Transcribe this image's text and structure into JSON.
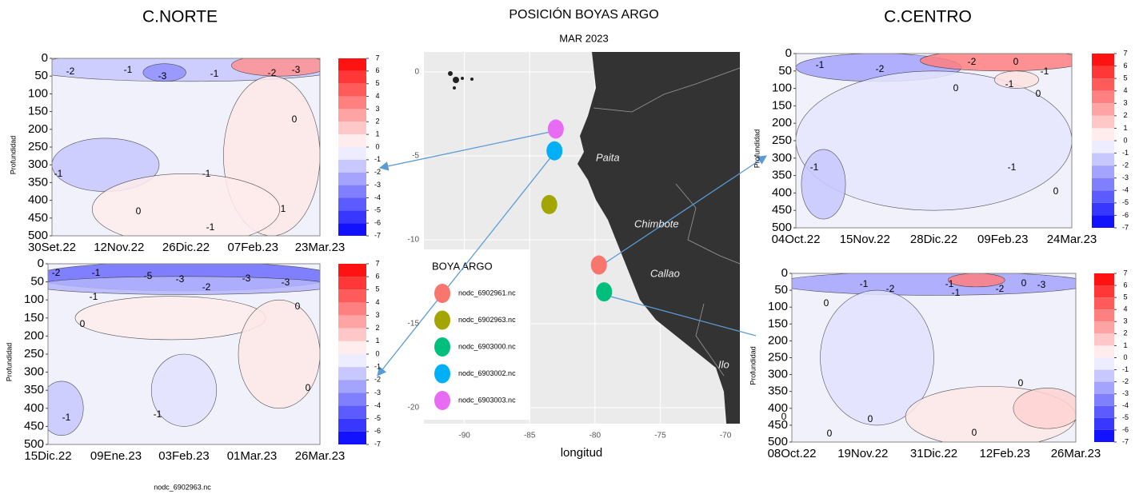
{
  "headings": {
    "left": "C.NORTE",
    "right": "C.CENTRO"
  },
  "panels": [
    {
      "ylabel": "Profundidad",
      "ylim": [
        0,
        500
      ],
      "yticks": [
        0,
        50,
        100,
        150,
        200,
        250,
        300,
        350,
        400,
        450,
        500
      ],
      "xticks": [
        "30Set.22",
        "12Nov.22",
        "26Dic.22",
        "07Feb.23",
        "23Mar.23"
      ],
      "clim": [
        -7,
        7
      ],
      "cticks": [
        7,
        6,
        5,
        4,
        3,
        2,
        1,
        0,
        -1,
        -2,
        -3,
        -4,
        -5,
        -6,
        -7
      ],
      "contour_labels": [
        -2,
        -1,
        -3,
        -1,
        -2,
        -3,
        0,
        -1,
        0,
        -1,
        1,
        -1
      ]
    },
    {
      "ylabel": "Profundidad",
      "ylim": [
        0,
        500
      ],
      "yticks": [
        0,
        50,
        100,
        150,
        200,
        250,
        300,
        350,
        400,
        450,
        500
      ],
      "xticks": [
        "15Dic.22",
        "09Ene.23",
        "03Feb.23",
        "01Mar.23",
        "26Mar.23"
      ],
      "clim": [
        -7,
        7
      ],
      "cticks": [
        7,
        6,
        5,
        4,
        3,
        2,
        1,
        0,
        -1,
        -2,
        -3,
        -4,
        -5,
        -6,
        -7
      ],
      "contour_labels": [
        -2,
        -1,
        -5,
        -3,
        -2,
        -3,
        -3,
        -1,
        0,
        0,
        -1,
        -1,
        0
      ]
    },
    {
      "ylabel": "Profundidad",
      "ylim": [
        0,
        500
      ],
      "yticks": [
        0,
        50,
        100,
        150,
        200,
        250,
        300,
        350,
        400,
        450,
        500
      ],
      "xticks": [
        "04Oct.22",
        "15Nov.22",
        "28Dic.22",
        "09Feb.23",
        "24Mar.23"
      ],
      "clim": [
        -7,
        7
      ],
      "cticks": [
        7,
        6,
        5,
        4,
        3,
        2,
        1,
        0,
        -1,
        -2,
        -3,
        -4,
        -5,
        -6,
        -7
      ],
      "contour_labels": [
        -1,
        -2,
        -2,
        0,
        -1,
        -1,
        0,
        0,
        -1,
        -1,
        0
      ]
    },
    {
      "ylabel": "Profundidad",
      "ylim": [
        0,
        500
      ],
      "yticks": [
        0,
        50,
        100,
        150,
        200,
        250,
        300,
        350,
        400,
        450,
        500
      ],
      "xticks": [
        "08Oct.22",
        "19Nov.22",
        "31Dic.22",
        "12Feb.23",
        "26Mar.23"
      ],
      "clim": [
        -7,
        7
      ],
      "cticks": [
        7,
        6,
        5,
        4,
        3,
        2,
        1,
        0,
        -1,
        -2,
        -3,
        -4,
        -5,
        -6,
        -7
      ],
      "contour_labels": [
        -1,
        -2,
        -1,
        -2,
        0,
        -3,
        0,
        -1,
        0,
        0,
        0,
        0,
        0
      ]
    }
  ],
  "map": {
    "title": "POSICIÓN BOYAS ARGO",
    "subtitle": "MAR 2023",
    "xlabel": "longitud",
    "xlim": [
      -93.1,
      -68.9
    ],
    "ylim": [
      -20.95,
      1.19
    ],
    "xticks": [
      -90,
      -85,
      -80,
      -75,
      -70
    ],
    "yticks": [
      0,
      -5,
      -10,
      -15,
      -20
    ],
    "legend_title": "BOYA ARGO",
    "buoys": [
      {
        "name": "nodc_6902961.nc",
        "color": "#f8766d",
        "lon": -79.7,
        "lat": -11.5
      },
      {
        "name": "nodc_6902963.nc",
        "color": "#a3a500",
        "lon": -83.5,
        "lat": -7.9
      },
      {
        "name": "nodc_6903000.nc",
        "color": "#00bf7d",
        "lon": -79.3,
        "lat": -13.1
      },
      {
        "name": "nodc_6903002.nc",
        "color": "#00b0f6",
        "lon": -83.1,
        "lat": -4.7
      },
      {
        "name": "nodc_6903003.nc",
        "color": "#e76bf3",
        "lon": -83.0,
        "lat": -3.4
      }
    ],
    "places": [
      "Paita",
      "Chimbote",
      "Callao",
      "Ilo"
    ]
  },
  "footer": "nodc_6902963.nc"
}
